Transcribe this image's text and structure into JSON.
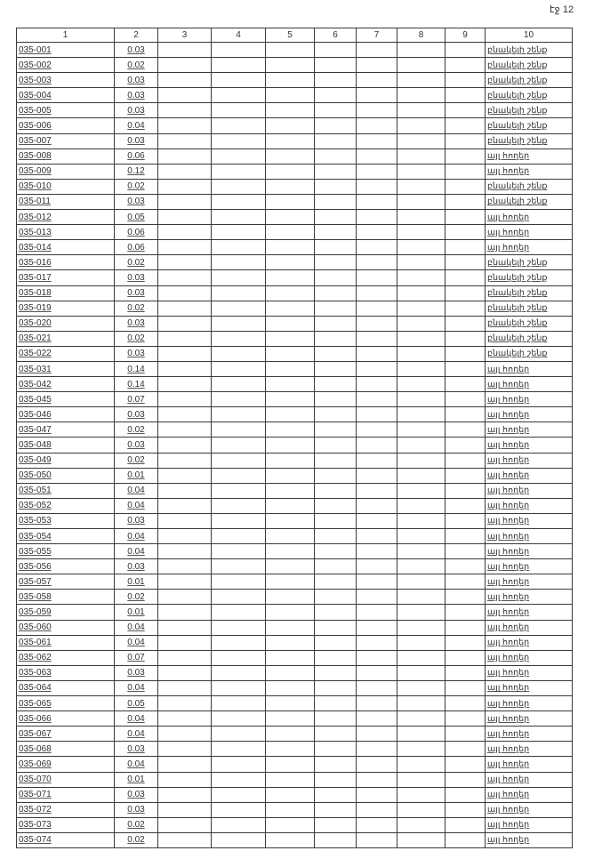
{
  "page_label": "էջ 12",
  "columns": [
    "1",
    "2",
    "3",
    "4",
    "5",
    "6",
    "7",
    "8",
    "9",
    "10"
  ],
  "rows": [
    [
      "035-001",
      "0.03",
      "բնակելի շենք"
    ],
    [
      "035-002",
      "0.02",
      "բնակելի շենք"
    ],
    [
      "035-003",
      "0.03",
      "բնակելի շենք"
    ],
    [
      "035-004",
      "0.03",
      "բնակելի շենք"
    ],
    [
      "035-005",
      "0.03",
      "բնակելի շենք"
    ],
    [
      "035-006",
      "0.04",
      "բնակելի շենք"
    ],
    [
      "035-007",
      "0.03",
      "բնակելի շենք"
    ],
    [
      "035-008",
      "0.06",
      "այլ հողեր"
    ],
    [
      "035-009",
      "0.12",
      "այլ հողեր"
    ],
    [
      "035-010",
      "0.02",
      "բնակելի շենք"
    ],
    [
      "035-011",
      "0.03",
      "բնակելի շենք"
    ],
    [
      "035-012",
      "0.05",
      "այլ հողեր"
    ],
    [
      "035-013",
      "0.06",
      "այլ հողեր"
    ],
    [
      "035-014",
      "0.06",
      "այլ հողեր"
    ],
    [
      "035-016",
      "0.02",
      "բնակելի շենք"
    ],
    [
      "035-017",
      "0.03",
      "բնակելի շենք"
    ],
    [
      "035-018",
      "0.03",
      "բնակելի շենք"
    ],
    [
      "035-019",
      "0.02",
      "բնակելի շենք"
    ],
    [
      "035-020",
      "0.03",
      "բնակելի շենք"
    ],
    [
      "035-021",
      "0.02",
      "բնակելի շենք"
    ],
    [
      "035-022",
      "0.03",
      "բնակելի շենք"
    ],
    [
      "035-031",
      "0.14",
      "այլ հողեր"
    ],
    [
      "035-042",
      "0.14",
      "այլ հողեր"
    ],
    [
      "035-045",
      "0.07",
      "այլ հողեր"
    ],
    [
      "035-046",
      "0.03",
      "այլ հողեր"
    ],
    [
      "035-047",
      "0.02",
      "այլ հողեր"
    ],
    [
      "035-048",
      "0.03",
      "այլ հողեր"
    ],
    [
      "035-049",
      "0.02",
      "այլ հողեր"
    ],
    [
      "035-050",
      "0.01",
      "այլ հողեր"
    ],
    [
      "035-051",
      "0.04",
      "այլ հողեր"
    ],
    [
      "035-052",
      "0.04",
      "այլ հողեր"
    ],
    [
      "035-053",
      "0.03",
      "այլ հողեր"
    ],
    [
      "035-054",
      "0.04",
      "այլ հողեր"
    ],
    [
      "035-055",
      "0.04",
      "այլ հողեր"
    ],
    [
      "035-056",
      "0.03",
      "այլ հողեր"
    ],
    [
      "035-057",
      "0.01",
      "այլ հողեր"
    ],
    [
      "035-058",
      "0.02",
      "այլ հողեր"
    ],
    [
      "035-059",
      "0.01",
      "այլ հողեր"
    ],
    [
      "035-060",
      "0.04",
      "այլ հողեր"
    ],
    [
      "035-061",
      "0.04",
      "այլ հողեր"
    ],
    [
      "035-062",
      "0.07",
      "այլ հողեր"
    ],
    [
      "035-063",
      "0.03",
      "այլ հողեր"
    ],
    [
      "035-064",
      "0.04",
      "այլ հողեր"
    ],
    [
      "035-065",
      "0.05",
      "այլ հողեր"
    ],
    [
      "035-066",
      "0.04",
      "այլ հողեր"
    ],
    [
      "035-067",
      "0.04",
      "այլ հողեր"
    ],
    [
      "035-068",
      "0.03",
      "այլ հողեր"
    ],
    [
      "035-069",
      "0.04",
      "այլ հողեր"
    ],
    [
      "035-070",
      "0.01",
      "այլ հողեր"
    ],
    [
      "035-071",
      "0.03",
      "այլ հողեր"
    ],
    [
      "035-072",
      "0.03",
      "այլ հողեր"
    ],
    [
      "035-073",
      "0.02",
      "այլ հողեր"
    ],
    [
      "035-074",
      "0.02",
      "այլ հողեր"
    ]
  ]
}
